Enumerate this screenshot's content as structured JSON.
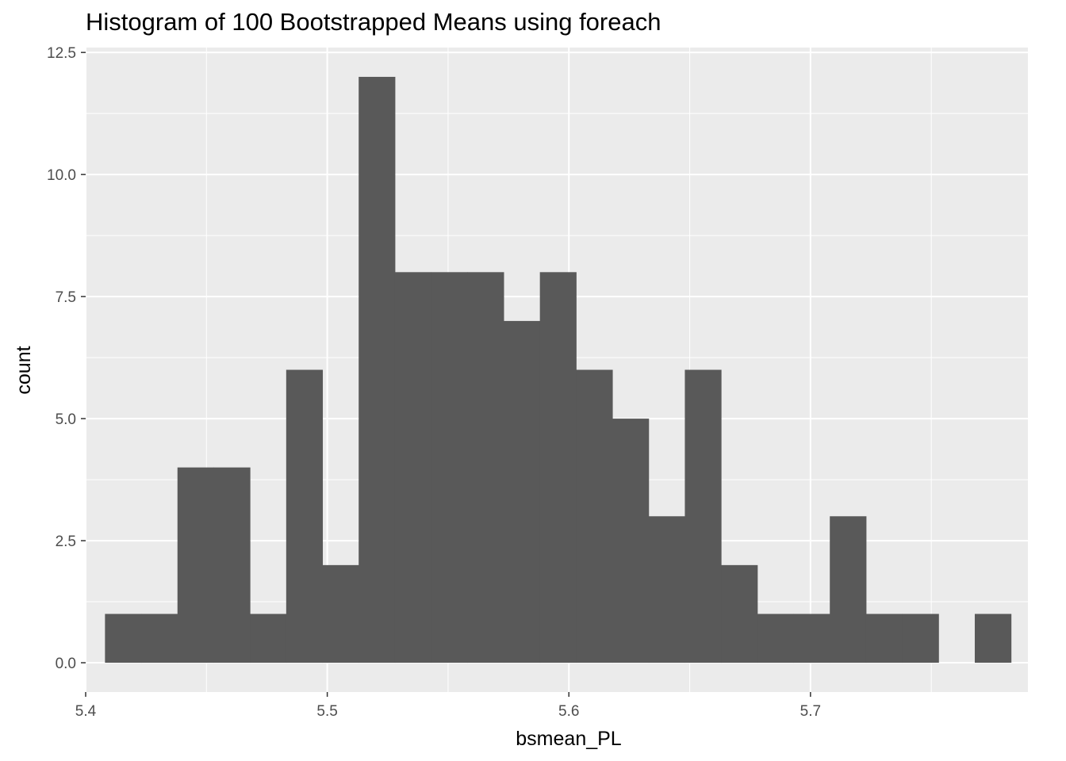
{
  "chart_data": {
    "type": "bar",
    "title": "Histogram of 100 Bootstrapped Means using foreach",
    "xlabel": "bsmean_PL",
    "ylabel": "count",
    "xlim": [
      5.4,
      5.79
    ],
    "ylim": [
      -0.6,
      12.6
    ],
    "x_ticks": [
      5.4,
      5.5,
      5.6,
      5.7
    ],
    "x_tick_labels": [
      "5.4",
      "5.5",
      "5.6",
      "5.7"
    ],
    "y_ticks": [
      0,
      2.5,
      5,
      7.5,
      10,
      12.5
    ],
    "y_tick_labels": [
      "0.0",
      "2.5",
      "5.0",
      "7.5",
      "10.0",
      "12.5"
    ],
    "bin_width": 0.015,
    "bin_start": 5.408,
    "values": [
      1,
      1,
      4,
      4,
      1,
      6,
      2,
      12,
      8,
      8,
      8,
      7,
      8,
      6,
      5,
      3,
      6,
      2,
      1,
      1,
      3,
      1,
      1,
      0,
      1
    ],
    "bar_color": "#595959",
    "panel_background": "#ebebeb",
    "grid": true
  }
}
